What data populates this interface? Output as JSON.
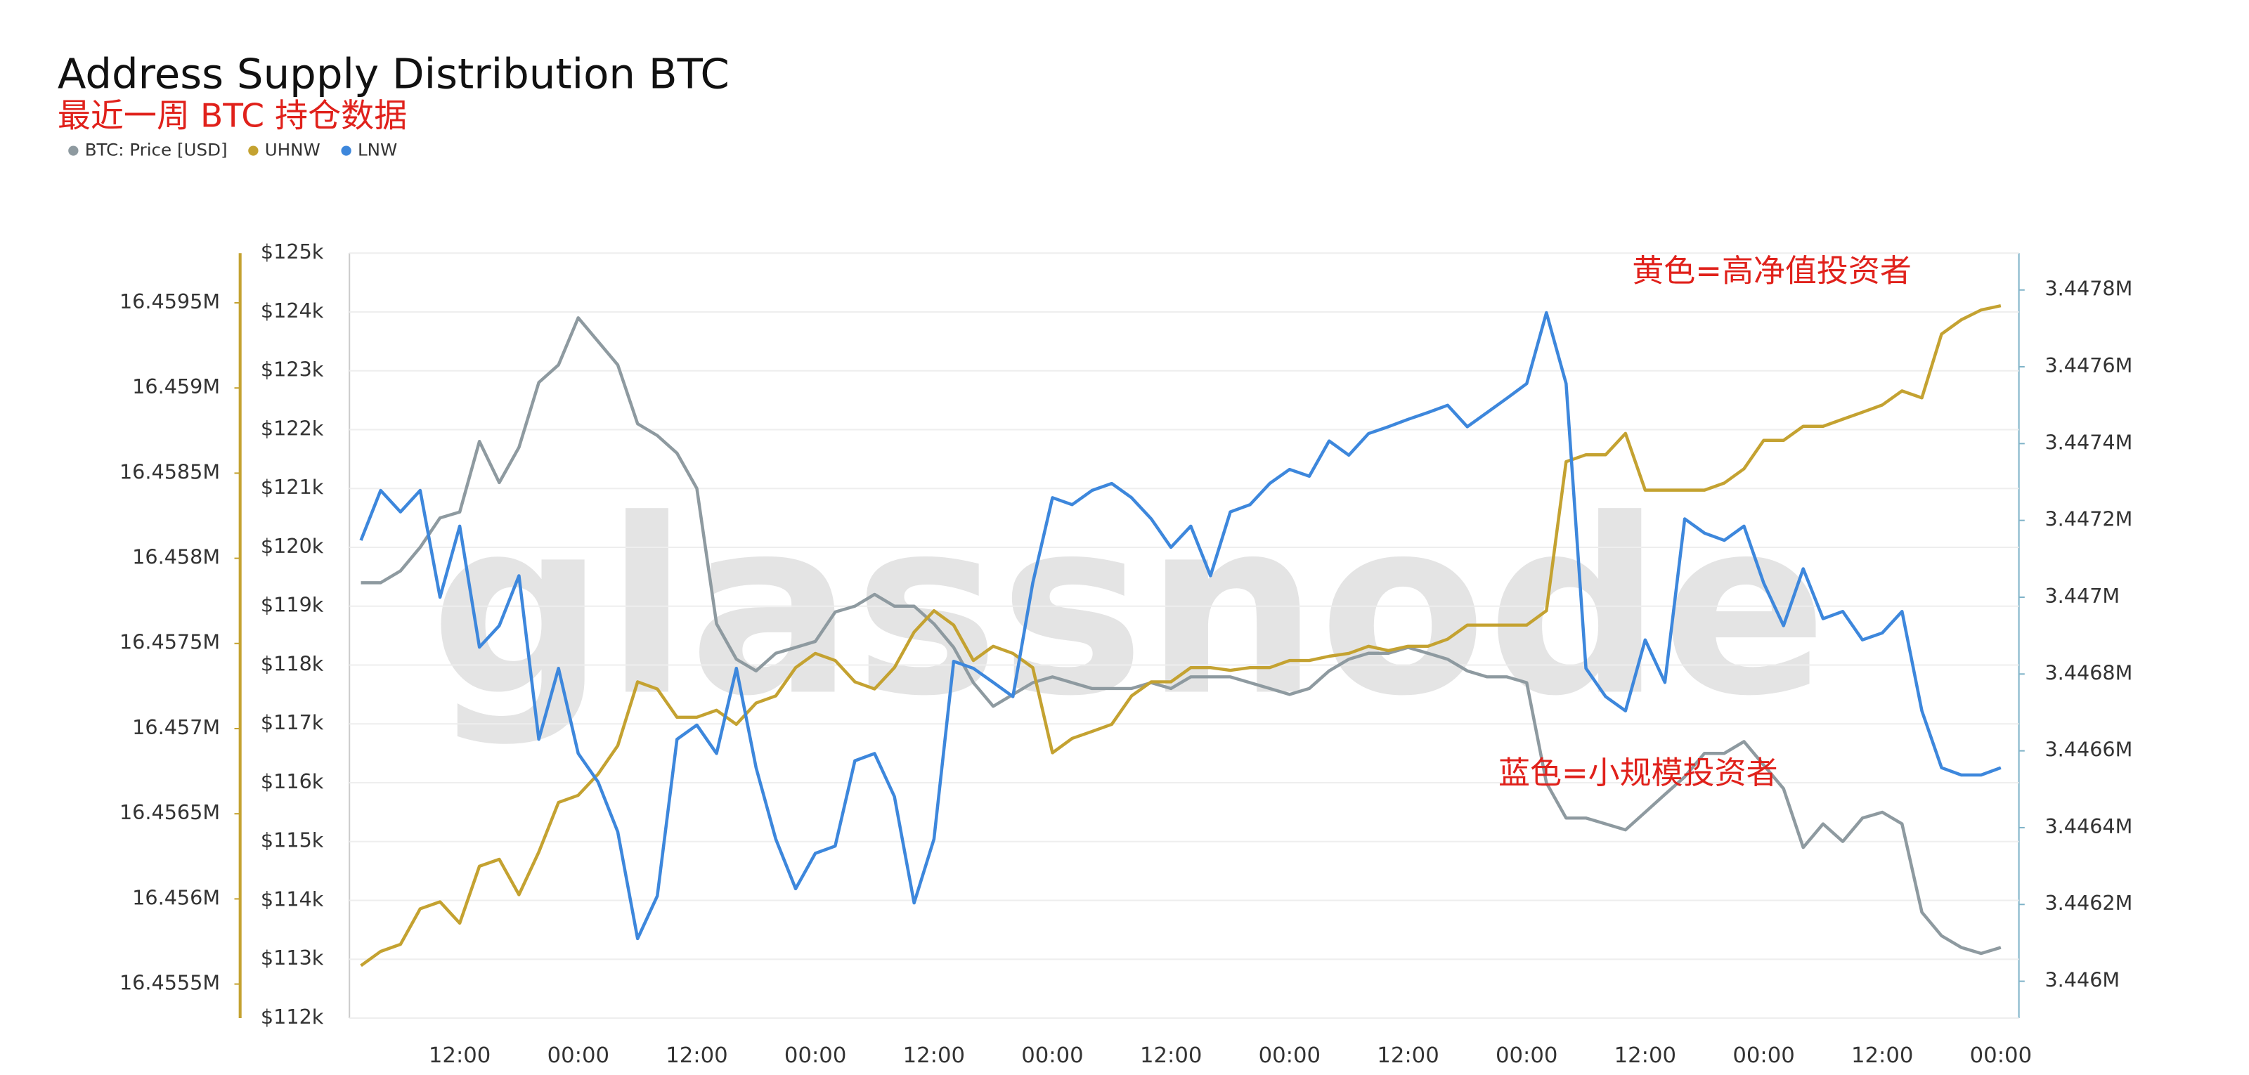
{
  "chart_data": {
    "type": "line",
    "title": "Address Supply Distribution BTC",
    "subtitle": "最近一周 BTC 持仓数据",
    "watermark": "glassnode",
    "annotations": [
      "黄色=高净值投资者",
      "蓝色=小规模投资者"
    ],
    "categories": [
      null,
      null,
      null,
      null,
      null,
      "12:00",
      null,
      null,
      null,
      null,
      null,
      "00:00",
      null,
      null,
      null,
      null,
      null,
      "12:00",
      null,
      null,
      null,
      null,
      null,
      "00:00",
      null,
      null,
      null,
      null,
      null,
      "12:00",
      null,
      null,
      null,
      null,
      null,
      "00:00",
      null,
      null,
      null,
      null,
      null,
      "12:00",
      null,
      null,
      null,
      null,
      null,
      "00:00",
      null,
      null,
      null,
      null,
      null,
      "12:00",
      null,
      null,
      null,
      null,
      null,
      "00:00",
      null,
      null,
      null,
      null,
      null,
      "12:00",
      null,
      null,
      null,
      null,
      null,
      "00:00",
      null,
      null,
      null,
      null,
      null,
      "12:00",
      null,
      null,
      null,
      null,
      null,
      "00:00"
    ],
    "ylim": [
      112000,
      125000
    ],
    "yticks": [
      {
        "value": 112000,
        "label": "$112k"
      },
      {
        "value": 113000,
        "label": "$113k"
      },
      {
        "value": 114000,
        "label": "$114k"
      },
      {
        "value": 115000,
        "label": "$115k"
      },
      {
        "value": 116000,
        "label": "$116k"
      },
      {
        "value": 117000,
        "label": "$117k"
      },
      {
        "value": 118000,
        "label": "$118k"
      },
      {
        "value": 119000,
        "label": "$119k"
      },
      {
        "value": 120000,
        "label": "$120k"
      },
      {
        "value": 121000,
        "label": "$121k"
      },
      {
        "value": 122000,
        "label": "$122k"
      },
      {
        "value": 123000,
        "label": "$123k"
      },
      {
        "value": 124000,
        "label": "$124k"
      },
      {
        "value": 125000,
        "label": "$125k"
      }
    ],
    "y2lim": [
      3445904,
      3447896
    ],
    "y2ticks": [
      {
        "value": 3446000,
        "label": "3.446M"
      },
      {
        "value": 3446200,
        "label": "3.4462M"
      },
      {
        "value": 3446400,
        "label": "3.4464M"
      },
      {
        "value": 3446600,
        "label": "3.4466M"
      },
      {
        "value": 3446800,
        "label": "3.4468M"
      },
      {
        "value": 3447000,
        "label": "3.447M"
      },
      {
        "value": 3447200,
        "label": "3.4472M"
      },
      {
        "value": 3447400,
        "label": "3.4474M"
      },
      {
        "value": 3447600,
        "label": "3.4476M"
      },
      {
        "value": 3447800,
        "label": "3.4478M"
      }
    ],
    "y3lim": [
      16455300,
      16459792
    ],
    "y3ticks": [
      {
        "value": 16455500,
        "label": "16.4555M"
      },
      {
        "value": 16456000,
        "label": "16.456M"
      },
      {
        "value": 16456500,
        "label": "16.4565M"
      },
      {
        "value": 16457000,
        "label": "16.457M"
      },
      {
        "value": 16457500,
        "label": "16.4575M"
      },
      {
        "value": 16458000,
        "label": "16.458M"
      },
      {
        "value": 16458500,
        "label": "16.4585M"
      },
      {
        "value": 16459000,
        "label": "16.459M"
      },
      {
        "value": 16459500,
        "label": "16.4595M"
      }
    ],
    "grid": true,
    "series": [
      {
        "name": "BTC: Price [USD]",
        "color": "#8e9aa0",
        "axis": "y",
        "values": [
          119400,
          119400,
          119600,
          120000,
          120500,
          120600,
          121800,
          121100,
          121700,
          122800,
          123100,
          123900,
          123500,
          123100,
          122100,
          121900,
          121600,
          121000,
          118700,
          118100,
          117900,
          118200,
          118300,
          118400,
          118900,
          119000,
          119200,
          119000,
          119000,
          118700,
          118300,
          117700,
          117300,
          117500,
          117700,
          117800,
          117700,
          117600,
          117600,
          117600,
          117700,
          117600,
          117800,
          117800,
          117800,
          117700,
          117600,
          117500,
          117600,
          117900,
          118100,
          118200,
          118200,
          118300,
          118200,
          118100,
          117900,
          117800,
          117800,
          117700,
          116000,
          115400,
          115400,
          115300,
          115200,
          115500,
          115800,
          116100,
          116500,
          116500,
          116700,
          116300,
          115900,
          114900,
          115300,
          115000,
          115400,
          115500,
          115300,
          113800,
          113400,
          113200,
          113100,
          113200
        ]
      },
      {
        "name": "UHNW",
        "color": "#c4a231",
        "axis": "y3",
        "values": [
          16455608,
          16455692,
          16455733,
          16455942,
          16455983,
          16455858,
          16456192,
          16456233,
          16456025,
          16456275,
          16456567,
          16456608,
          16456733,
          16456900,
          16457275,
          16457233,
          16457067,
          16457067,
          16457108,
          16457025,
          16457150,
          16457192,
          16457358,
          16457442,
          16457400,
          16457275,
          16457233,
          16457358,
          16457567,
          16457692,
          16457608,
          16457400,
          16457483,
          16457442,
          16457358,
          16456858,
          16456942,
          16456983,
          16457025,
          16457192,
          16457275,
          16457275,
          16457358,
          16457358,
          16457342,
          16457358,
          16457358,
          16457400,
          16457400,
          16457425,
          16457442,
          16457483,
          16457458,
          16457483,
          16457483,
          16457525,
          16457608,
          16457608,
          16457608,
          16457608,
          16457692,
          16458567,
          16458608,
          16458608,
          16458733,
          16458400,
          16458400,
          16458400,
          16458400,
          16458442,
          16458525,
          16458692,
          16458692,
          16458775,
          16458775,
          16458817,
          16458858,
          16458900,
          16458983,
          16458942,
          16459317,
          16459400,
          16459458,
          16459483
        ]
      },
      {
        "name": "LNW",
        "color": "#3d87dc",
        "axis": "y2",
        "values": [
          3447148,
          3447278,
          3447222,
          3447278,
          3447000,
          3447185,
          3446870,
          3446926,
          3447056,
          3446630,
          3446815,
          3446593,
          3446519,
          3446389,
          3446111,
          3446222,
          3446630,
          3446667,
          3446593,
          3446815,
          3446556,
          3446370,
          3446241,
          3446333,
          3446352,
          3446574,
          3446593,
          3446481,
          3446204,
          3446370,
          3446833,
          3446815,
          3446778,
          3446741,
          3447037,
          3447259,
          3447241,
          3447278,
          3447296,
          3447259,
          3447204,
          3447130,
          3447185,
          3447056,
          3447222,
          3447241,
          3447296,
          3447333,
          3447315,
          3447407,
          3447370,
          3447426,
          3447444,
          3447463,
          3447481,
          3447500,
          3447444,
          3447481,
          3447518,
          3447556,
          3447741,
          3447556,
          3446815,
          3446741,
          3446704,
          3446889,
          3446778,
          3447204,
          3447167,
          3447148,
          3447185,
          3447037,
          3446926,
          3447074,
          3446944,
          3446963,
          3446889,
          3446907,
          3446963,
          3446704,
          3446556,
          3446537,
          3446537,
          3446556
        ]
      }
    ]
  }
}
